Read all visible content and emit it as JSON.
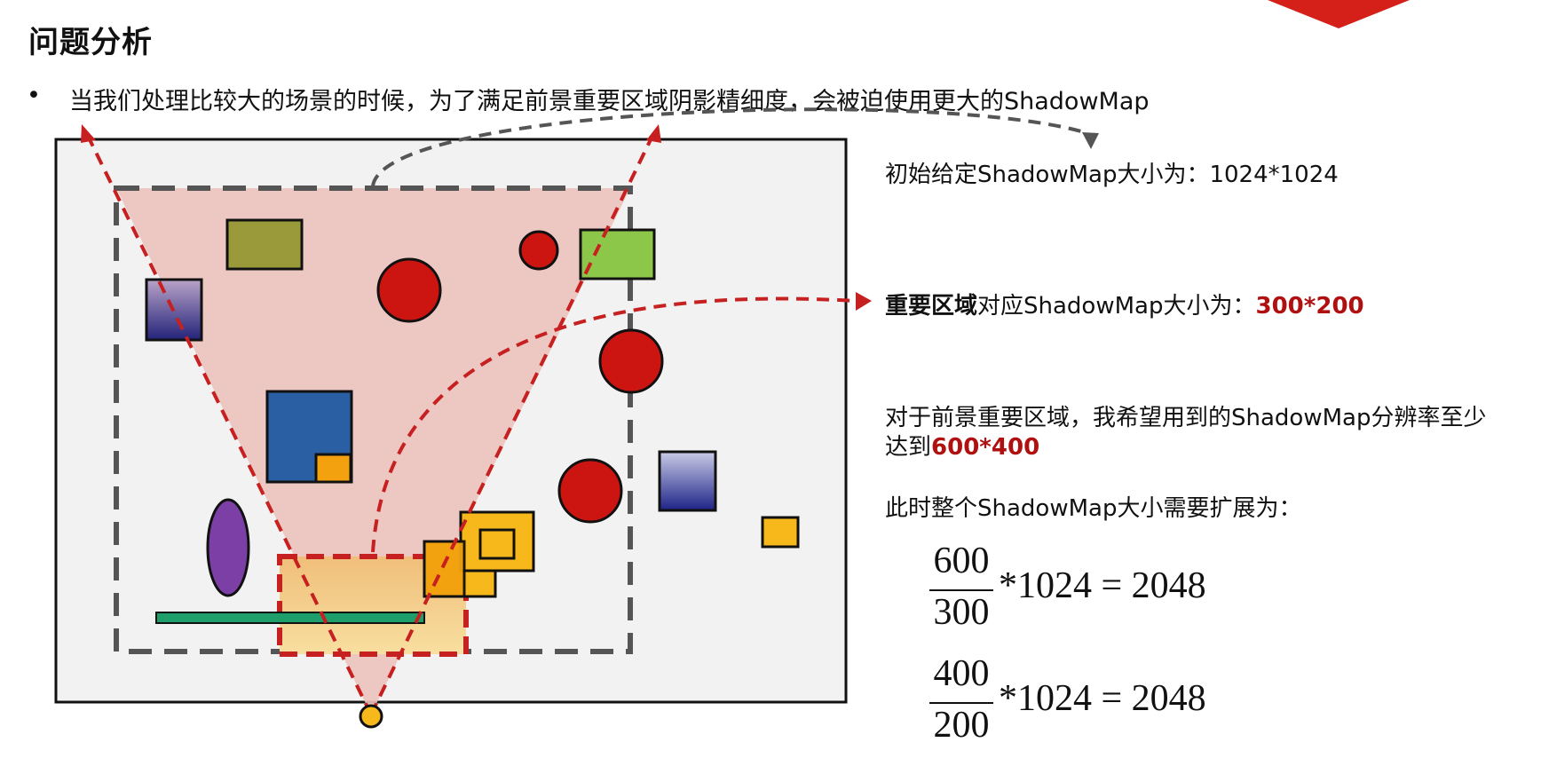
{
  "title": "问题分析",
  "bullet": {
    "marker": "•",
    "text": "当我们处理比较大的场景的时候，为了满足前景重要区域阴影精细度，会被迫使用更大的ShadowMap"
  },
  "notes": {
    "initial": "初始给定ShadowMap大小为：1024*1024",
    "important_bold": "重要区域",
    "important_rest": "对应ShadowMap大小为：",
    "important_value": "300*200",
    "desire_line1": "对于前景重要区域，我希望用到的ShadowMap分辨率至少",
    "desire_line2_prefix": "达到",
    "desire_value": "600*400",
    "expand": "此时整个ShadowMap大小需要扩展为："
  },
  "equations": [
    {
      "numerator": "600",
      "denominator": "300",
      "rest": "*1024 = 2048"
    },
    {
      "numerator": "400",
      "denominator": "200",
      "rest": "*1024 = 2048"
    }
  ],
  "colors": {
    "accent_red": "#b01010",
    "frustum_fill": "#ecc2bd",
    "important_region_fill": "#f4c580",
    "scene_bg": "#f2f2f2"
  }
}
